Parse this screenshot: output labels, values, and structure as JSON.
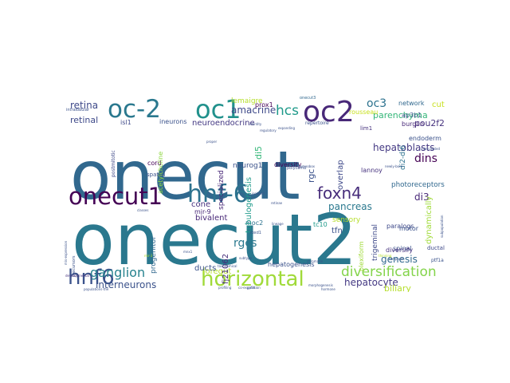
{
  "words": [
    {
      "text": "onecut",
      "color": "#31688e"
    },
    {
      "text": "onecut2",
      "color": "#2a788e"
    },
    {
      "text": "onecut1",
      "color": "#440154"
    },
    {
      "text": "hnf-6",
      "color": "#2c728e"
    },
    {
      "text": "oc-2",
      "color": "#2a788e"
    },
    {
      "text": "oc1",
      "color": "#21918c"
    },
    {
      "text": "oc2",
      "color": "#482878"
    },
    {
      "text": "horizontal",
      "color": "#a0da39"
    },
    {
      "text": "hnf6",
      "color": "#3b528b"
    },
    {
      "text": "foxn4",
      "color": "#472d7b"
    },
    {
      "text": "diversification",
      "color": "#84d44b"
    },
    {
      "text": "ganglion",
      "color": "#26828e"
    },
    {
      "text": "hcs",
      "color": "#1f9a8a"
    },
    {
      "text": "cut",
      "color": "#c8e020"
    },
    {
      "text": "oc3",
      "color": "#2c728e"
    },
    {
      "text": "retina",
      "color": "#3e4989"
    },
    {
      "text": "hepatoblasts",
      "color": "#443983"
    },
    {
      "text": "dins",
      "color": "#440154"
    },
    {
      "text": "interneurons",
      "color": "#3b528b"
    },
    {
      "text": "hepatocyte",
      "color": "#443983"
    },
    {
      "text": "parenchyma",
      "color": "#35b779"
    },
    {
      "text": "rgcs",
      "color": "#2a788e"
    },
    {
      "text": "pou2f2",
      "color": "#46327e"
    },
    {
      "text": "genesis",
      "color": "#31688e"
    },
    {
      "text": "amacrine",
      "color": "#3e4989"
    },
    {
      "text": "pancreas",
      "color": "#2a788e"
    },
    {
      "text": "biliary",
      "color": "#b5de2b"
    },
    {
      "text": "di3",
      "color": "#482878"
    },
    {
      "text": "retinal",
      "color": "#3e4989"
    },
    {
      "text": "neuroendocrine",
      "color": "#443983"
    },
    {
      "text": "photoreceptors",
      "color": "#31688e"
    },
    {
      "text": "tfn",
      "color": "#3b528b"
    },
    {
      "text": "ductal",
      "color": "#3e4989"
    },
    {
      "text": "foregut",
      "color": "#b5de2b"
    },
    {
      "text": "cone",
      "color": "#46327e"
    },
    {
      "text": "lemaigre",
      "color": "#b5de2b"
    },
    {
      "text": "network",
      "color": "#31688e"
    },
    {
      "text": "endoderm",
      "color": "#3b528b"
    },
    {
      "text": "burglin",
      "color": "#482878"
    },
    {
      "text": "ap3b1",
      "color": "#3b528b"
    },
    {
      "text": "prox1",
      "color": "#440154"
    },
    {
      "text": "rousseau",
      "color": "#c8e020"
    },
    {
      "text": "neurog1",
      "color": "#3b528b"
    },
    {
      "text": "diversity",
      "color": "#440154"
    },
    {
      "text": "lannoy",
      "color": "#46327e"
    },
    {
      "text": "moc2",
      "color": "#2c728e"
    },
    {
      "text": "paralogs",
      "color": "#3e4989"
    },
    {
      "text": "spinal",
      "color": "#3b528b"
    },
    {
      "text": "motor",
      "color": "#3b528b"
    },
    {
      "text": "diversify",
      "color": "#46327e"
    },
    {
      "text": "hepatogenesis",
      "color": "#3b528b"
    },
    {
      "text": "trigeminal",
      "color": "#3e4989"
    },
    {
      "text": "plexiform",
      "color": "#a0da39"
    },
    {
      "text": "ducts",
      "color": "#3b528b"
    },
    {
      "text": "bivalent",
      "color": "#482878"
    },
    {
      "text": "specialized",
      "color": "#482878"
    },
    {
      "text": "progenitor",
      "color": "#31688e"
    },
    {
      "text": "sensory",
      "color": "#b5de2b"
    },
    {
      "text": "mir-9",
      "color": "#482878"
    },
    {
      "text": "tc10",
      "color": "#1f9a8a"
    },
    {
      "text": "fj21062",
      "color": "#472d7b"
    },
    {
      "text": "ineurons",
      "color": "#3b528b"
    },
    {
      "text": "isl1",
      "color": "#3e4989"
    },
    {
      "text": "cord",
      "color": "#440154"
    },
    {
      "text": "spatial",
      "color": "#3b528b"
    },
    {
      "text": "tubulogenesis",
      "color": "#1f9a8a"
    },
    {
      "text": "dynamically",
      "color": "#a0da39"
    },
    {
      "text": "overlap",
      "color": "#3e4989"
    },
    {
      "text": "di2-di6",
      "color": "#2c728e"
    },
    {
      "text": "rgc",
      "color": "#3b528b"
    },
    {
      "text": "di5",
      "color": "#35b779"
    },
    {
      "text": "lim1",
      "color": "#46327e"
    },
    {
      "text": "acetylcholine",
      "color": "#8fd744"
    },
    {
      "text": "onecut3",
      "color": "#31688e"
    },
    {
      "text": "repertoire",
      "color": "#3b528b"
    },
    {
      "text": "intralobular",
      "color": "#3b528b"
    },
    {
      "text": "polycomb",
      "color": "#3b528b"
    },
    {
      "text": "postmitotic",
      "color": "#3e4989"
    },
    {
      "text": "regulatory",
      "color": "#3b528b"
    },
    {
      "text": "precursors",
      "color": "#3b528b"
    },
    {
      "text": "ptf1a",
      "color": "#3b528b"
    },
    {
      "text": "foxd1",
      "color": "#3b528b"
    },
    {
      "text": "developmental",
      "color": "#46327e"
    },
    {
      "text": "populations-the",
      "color": "#3b528b"
    },
    {
      "text": "profiling",
      "color": "#3b528b"
    },
    {
      "text": "intercalated",
      "color": "#3b528b"
    },
    {
      "text": "newly-born",
      "color": "#3b528b"
    },
    {
      "text": "chromatin",
      "color": "#3b528b"
    },
    {
      "text": "thinning",
      "color": "#b5de2b"
    },
    {
      "text": "gp56",
      "color": "#3b528b"
    },
    {
      "text": "morphogenesis",
      "color": "#3b528b"
    },
    {
      "text": "temporal",
      "color": "#3b528b"
    },
    {
      "text": "mir-3",
      "color": "#b5de2b"
    },
    {
      "text": "mnx1",
      "color": "#3b528b"
    },
    {
      "text": "proper",
      "color": "#3b528b"
    },
    {
      "text": "identity",
      "color": "#3b528b"
    },
    {
      "text": "classes",
      "color": "#3b528b"
    },
    {
      "text": "subtype",
      "color": "#3b528b"
    },
    {
      "text": "lineage",
      "color": "#3b528b"
    },
    {
      "text": "expanding",
      "color": "#3b528b"
    },
    {
      "text": "isolated",
      "color": "#3b528b"
    },
    {
      "text": "retinae",
      "color": "#3b528b"
    },
    {
      "text": "hormone",
      "color": "#3b528b"
    },
    {
      "text": "homeobox",
      "color": "#3b528b"
    },
    {
      "text": "taxonomical",
      "color": "#3b528b"
    },
    {
      "text": "co-expression",
      "color": "#3b528b"
    },
    {
      "text": "subpopulation",
      "color": "#3b528b"
    },
    {
      "text": "mis-expression",
      "color": "#3b528b"
    }
  ]
}
